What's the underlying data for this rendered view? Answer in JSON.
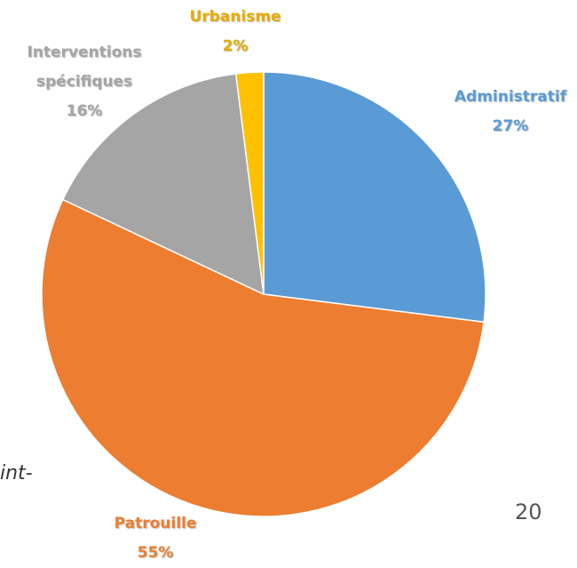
{
  "chart_data": {
    "type": "pie",
    "categories": [
      "Administratif",
      "Patrouille",
      "Interventions spécifiques",
      "Urbanisme"
    ],
    "values": [
      27,
      55,
      16,
      2
    ],
    "value_labels": [
      "27%",
      "55%",
      "16%",
      "2%"
    ],
    "colors": [
      "#5b9bd5",
      "#ed7d31",
      "#a5a5a5",
      "#ffc000"
    ],
    "label_colors": [
      "#5b9bd5",
      "#ed7d31",
      "#a5a5a5",
      "#e6ac00"
    ]
  },
  "text_fragment": "int-",
  "slide_number": "20"
}
